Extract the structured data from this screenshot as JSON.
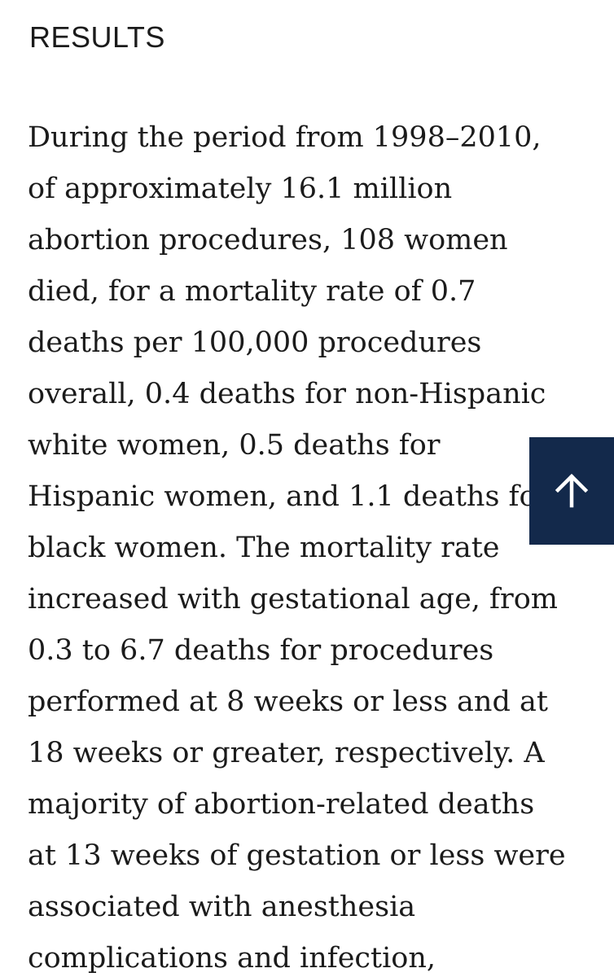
{
  "section": {
    "heading": "RESULTS"
  },
  "paragraph": {
    "lines": [
      "During the period from 1998–2010,",
      "of approximately 16.1 million",
      "abortion procedures, 108 women",
      "died, for a mortality rate of 0.7",
      "deaths per 100,000 procedures",
      "overall, 0.4 deaths for non-Hispanic",
      "white women, 0.5 deaths for",
      "Hispanic women, and 1.1 deaths for",
      "black women. The mortality rate",
      "increased with gestational age, from",
      "0.3 to 6.7 deaths for procedures",
      "performed at 8 weeks or less and at",
      "18 weeks or greater, respectively. A",
      "majority of abortion-related deaths",
      "at 13 weeks of gestation or less were",
      "associated with anesthesia",
      "complications and infection,"
    ]
  },
  "back_to_top": {
    "icon": "arrow-up-icon",
    "background": "#13294b"
  }
}
